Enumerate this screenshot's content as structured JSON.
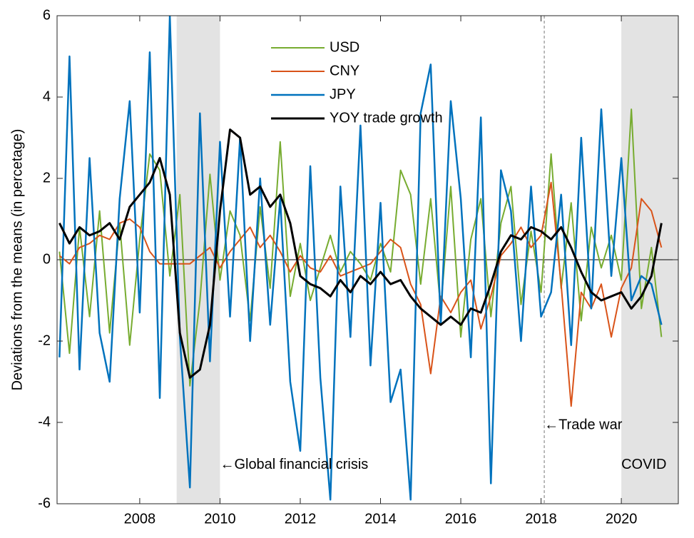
{
  "chart_data": {
    "type": "line",
    "ylabel": "Deviations from the means (in percetage)",
    "x": [
      2006.0,
      2006.25,
      2006.5,
      2006.75,
      2007.0,
      2007.25,
      2007.5,
      2007.75,
      2008.0,
      2008.25,
      2008.5,
      2008.75,
      2009.0,
      2009.25,
      2009.5,
      2009.75,
      2010.0,
      2010.25,
      2010.5,
      2010.75,
      2011.0,
      2011.25,
      2011.5,
      2011.75,
      2012.0,
      2012.25,
      2012.5,
      2012.75,
      2013.0,
      2013.25,
      2013.5,
      2013.75,
      2014.0,
      2014.25,
      2014.5,
      2014.75,
      2015.0,
      2015.25,
      2015.5,
      2015.75,
      2016.0,
      2016.25,
      2016.5,
      2016.75,
      2017.0,
      2017.25,
      2017.5,
      2017.75,
      2018.0,
      2018.25,
      2018.5,
      2018.75,
      2019.0,
      2019.25,
      2019.5,
      2019.75,
      2020.0,
      2020.25,
      2020.5,
      2020.75,
      2021.0
    ],
    "series": [
      {
        "name": "USD",
        "color": "#77ac30",
        "width": 2,
        "values": [
          0.2,
          -2.3,
          0.8,
          -1.4,
          1.2,
          -1.8,
          0.9,
          -2.1,
          0.5,
          2.6,
          2.2,
          -0.4,
          1.6,
          -3.1,
          -1.0,
          2.1,
          -0.5,
          1.2,
          0.6,
          -1.5,
          1.3,
          -0.7,
          2.9,
          -0.9,
          0.4,
          -1.0,
          -0.2,
          0.6,
          -0.3,
          0.2,
          -0.1,
          -0.5,
          0.4,
          -0.3,
          2.2,
          1.6,
          -0.6,
          1.5,
          -1.2,
          1.8,
          -1.9,
          0.5,
          1.5,
          -1.4,
          0.9,
          1.8,
          -1.1,
          0.7,
          -0.8,
          2.6,
          -0.7,
          1.4,
          -1.5,
          0.8,
          -0.2,
          0.6,
          -0.5,
          3.7,
          -1.2,
          0.3,
          -1.9
        ]
      },
      {
        "name": "CNY",
        "color": "#d95319",
        "width": 2,
        "values": [
          0.1,
          -0.1,
          0.3,
          0.4,
          0.6,
          0.5,
          0.9,
          1.0,
          0.8,
          0.2,
          -0.1,
          -0.1,
          -0.1,
          -0.1,
          0.1,
          0.3,
          -0.2,
          0.2,
          0.5,
          0.8,
          0.3,
          0.6,
          0.2,
          -0.3,
          0.1,
          -0.2,
          -0.3,
          0.1,
          -0.4,
          -0.3,
          -0.2,
          -0.1,
          0.2,
          0.5,
          0.3,
          -0.6,
          -1.1,
          -2.8,
          -0.9,
          -1.3,
          -0.8,
          -0.5,
          -1.7,
          -0.9,
          0.1,
          0.4,
          0.8,
          0.3,
          0.6,
          1.9,
          -0.6,
          -3.6,
          -0.8,
          -1.2,
          -0.6,
          -1.9,
          -0.7,
          -0.2,
          1.5,
          1.2,
          0.3
        ]
      },
      {
        "name": "JPY",
        "color": "#0072bd",
        "width": 2.5,
        "values": [
          -2.4,
          5.0,
          -2.7,
          2.5,
          -1.8,
          -3.0,
          1.5,
          3.9,
          -1.3,
          5.1,
          -3.4,
          6.0,
          -1.9,
          -5.6,
          3.6,
          -2.5,
          2.9,
          -1.4,
          3.0,
          -2.0,
          2.0,
          -1.6,
          1.5,
          -3.0,
          -4.7,
          2.3,
          -2.9,
          -5.9,
          1.8,
          -1.9,
          3.3,
          -2.6,
          1.4,
          -3.5,
          -2.7,
          -5.9,
          3.6,
          4.8,
          -1.6,
          3.9,
          1.5,
          -2.4,
          3.5,
          -5.5,
          2.2,
          1.2,
          -2.0,
          1.8,
          -1.4,
          -0.8,
          1.6,
          -2.1,
          3.0,
          -1.2,
          3.7,
          -0.4,
          2.5,
          -1.0,
          -0.4,
          -0.6,
          -1.6
        ]
      },
      {
        "name": "YOY trade growth",
        "color": "#000000",
        "width": 3,
        "values": [
          0.9,
          0.4,
          0.8,
          0.6,
          0.7,
          0.9,
          0.5,
          1.3,
          1.6,
          1.9,
          2.5,
          1.6,
          -1.8,
          -2.9,
          -2.7,
          -1.6,
          1.2,
          3.2,
          3.0,
          1.6,
          1.8,
          1.3,
          1.6,
          0.9,
          -0.4,
          -0.6,
          -0.7,
          -0.9,
          -0.5,
          -0.8,
          -0.4,
          -0.6,
          -0.3,
          -0.6,
          -0.5,
          -0.9,
          -1.2,
          -1.4,
          -1.6,
          -1.4,
          -1.6,
          -1.2,
          -1.3,
          -0.6,
          0.2,
          0.6,
          0.5,
          0.8,
          0.7,
          0.5,
          0.8,
          0.3,
          -0.3,
          -0.8,
          -1.0,
          -0.9,
          -0.8,
          -1.2,
          -0.9,
          -0.4,
          0.9
        ]
      }
    ],
    "xlim": [
      2005.94,
      2021.42
    ],
    "ylim": [
      -6,
      6
    ],
    "xticks": [
      2008,
      2010,
      2012,
      2014,
      2016,
      2018,
      2020
    ],
    "yticks": [
      -6,
      -4,
      -2,
      0,
      2,
      4,
      6
    ],
    "shaded_regions": [
      [
        2008.92,
        2010.0
      ],
      [
        2020.0,
        2021.42
      ]
    ],
    "vlines": [
      2018.08
    ],
    "hlines": [
      0
    ],
    "annotations": [
      {
        "text": "←Global financial crisis",
        "x": 2010.0,
        "y": -5.05
      },
      {
        "text": "←Trade war",
        "x": 2018.08,
        "y": -4.07
      },
      {
        "text": "COVID",
        "x": 2020.0,
        "y": -5.05
      }
    ]
  }
}
